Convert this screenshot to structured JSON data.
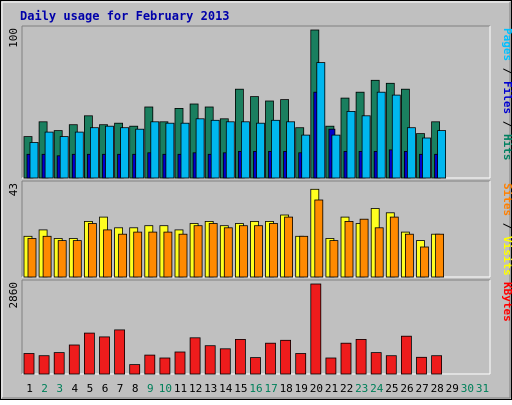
{
  "title": "Daily usage for February 2013",
  "chart_data": {
    "type": "bar",
    "title": "Daily usage for February 2013",
    "categories": [
      "1",
      "2",
      "3",
      "4",
      "5",
      "6",
      "7",
      "8",
      "9",
      "10",
      "11",
      "12",
      "13",
      "14",
      "15",
      "16",
      "17",
      "18",
      "19",
      "20",
      "21",
      "22",
      "23",
      "24",
      "25",
      "26",
      "27",
      "28",
      "29",
      "30",
      "31"
    ],
    "weekend_days": [
      "2",
      "3",
      "9",
      "10",
      "16",
      "17",
      "23",
      "24",
      "30",
      "31"
    ],
    "panels": [
      {
        "id": "hits",
        "ymax": 100,
        "ymax_label": "100",
        "right_label": [
          {
            "text": "Pages",
            "color": "#00c0ff"
          },
          {
            "text": " / ",
            "color": "#000000"
          },
          {
            "text": "Files",
            "color": "#0000d0"
          },
          {
            "text": " / ",
            "color": "#000000"
          },
          {
            "text": "Hits",
            "color": "#008060"
          }
        ],
        "series": [
          {
            "name": "Hits",
            "color": "#1a7f5f",
            "values": [
              28,
              38,
              32,
              36,
              42,
              36,
              37,
              35,
              48,
              38,
              47,
              50,
              48,
              40,
              60,
              55,
              52,
              53,
              34,
              100,
              35,
              54,
              58,
              66,
              64,
              60,
              30,
              38,
              null,
              null,
              null
            ]
          },
          {
            "name": "Files",
            "color": "#0000cc",
            "values": [
              16,
              16,
              15,
              16,
              16,
              16,
              16,
              16,
              17,
              16,
              16,
              17,
              16,
              17,
              18,
              18,
              18,
              18,
              17,
              58,
              33,
              18,
              18,
              18,
              19,
              18,
              16,
              16,
              null,
              null,
              null
            ]
          },
          {
            "name": "Pages",
            "color": "#00b7ef",
            "values": [
              24,
              31,
              28,
              31,
              34,
              35,
              34,
              33,
              38,
              37,
              37,
              40,
              39,
              38,
              38,
              37,
              39,
              38,
              29,
              78,
              29,
              45,
              42,
              58,
              56,
              34,
              27,
              32,
              null,
              null,
              null
            ]
          }
        ]
      },
      {
        "id": "visits",
        "ymax": 43,
        "ymax_label": "43",
        "right_label": [
          {
            "text": "Sites",
            "color": "#ff8000"
          },
          {
            "text": " / ",
            "color": "#000000"
          },
          {
            "text": "Visits",
            "color": "#ffff00"
          }
        ],
        "series": [
          {
            "name": "Visits",
            "color": "#ffff20",
            "values": [
              19,
              22,
              18,
              18,
              26,
              28,
              23,
              23,
              24,
              24,
              22,
              25,
              26,
              24,
              25,
              26,
              26,
              29,
              19,
              41,
              18,
              28,
              25,
              32,
              30,
              21,
              17,
              20,
              null,
              null,
              null
            ]
          },
          {
            "name": "Sites",
            "color": "#ff8a00",
            "values": [
              18,
              19,
              17,
              17,
              25,
              22,
              20,
              21,
              21,
              21,
              20,
              24,
              25,
              23,
              24,
              24,
              25,
              28,
              19,
              36,
              17,
              26,
              27,
              23,
              28,
              20,
              14,
              20,
              null,
              null,
              null
            ]
          }
        ]
      },
      {
        "id": "kbytes",
        "ymax": 2860,
        "ymax_label": "2860",
        "right_label": [
          {
            "text": "KBytes",
            "color": "#ff0000"
          }
        ],
        "series": [
          {
            "name": "KBytes",
            "color": "#ee1c1c",
            "values": [
              650,
              580,
              680,
              920,
              1300,
              1180,
              1400,
              300,
              600,
              510,
              700,
              1150,
              900,
              800,
              1100,
              520,
              980,
              1070,
              650,
              2860,
              510,
              980,
              1100,
              680,
              580,
              1200,
              530,
              580,
              null,
              null,
              null
            ]
          }
        ]
      }
    ]
  }
}
